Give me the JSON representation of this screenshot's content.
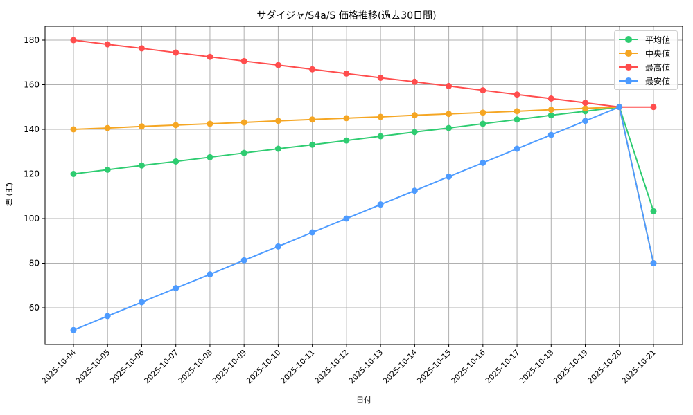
{
  "chart_data": {
    "type": "line",
    "title": "サダイジャ/S4a/S 価格推移(過去30日間)",
    "xlabel": "日付",
    "ylabel": "値 (円)",
    "categories": [
      "2025-10-04",
      "2025-10-05",
      "2025-10-06",
      "2025-10-07",
      "2025-10-08",
      "2025-10-09",
      "2025-10-10",
      "2025-10-11",
      "2025-10-12",
      "2025-10-13",
      "2025-10-14",
      "2025-10-15",
      "2025-10-16",
      "2025-10-17",
      "2025-10-18",
      "2025-10-19",
      "2025-10-20",
      "2025-10-21"
    ],
    "series": [
      {
        "name": "平均値",
        "color": "#2ecc71",
        "values": [
          120,
          121.9,
          123.8,
          125.6,
          127.5,
          129.4,
          131.3,
          133.1,
          135.0,
          136.9,
          138.8,
          140.6,
          142.5,
          144.4,
          146.3,
          148.1,
          150,
          103.3
        ]
      },
      {
        "name": "中央値",
        "color": "#f5a623",
        "values": [
          140,
          140.6,
          141.3,
          141.9,
          142.5,
          143.1,
          143.8,
          144.4,
          145.0,
          145.6,
          146.3,
          146.9,
          147.5,
          148.1,
          148.8,
          149.4,
          150,
          80
        ]
      },
      {
        "name": "最高値",
        "color": "#ff4d4d",
        "values": [
          180,
          178.1,
          176.3,
          174.4,
          172.5,
          170.6,
          168.8,
          166.9,
          165.0,
          163.1,
          161.3,
          159.4,
          157.5,
          155.6,
          153.8,
          151.9,
          150,
          150
        ]
      },
      {
        "name": "最安値",
        "color": "#4d9bff",
        "values": [
          50,
          56.3,
          62.5,
          68.8,
          75,
          81.3,
          87.5,
          93.8,
          100,
          106.3,
          112.5,
          118.8,
          125,
          131.3,
          137.5,
          143.8,
          150,
          80
        ]
      }
    ],
    "yticks": [
      60,
      80,
      100,
      120,
      140,
      160,
      180
    ],
    "ylim": [
      43.5,
      186.5
    ],
    "grid": true,
    "legend_position": "upper right"
  },
  "legend": {
    "items": [
      {
        "label": "平均値",
        "color": "#2ecc71"
      },
      {
        "label": "中央値",
        "color": "#f5a623"
      },
      {
        "label": "最高値",
        "color": "#ff4d4d"
      },
      {
        "label": "最安値",
        "color": "#4d9bff"
      }
    ]
  }
}
